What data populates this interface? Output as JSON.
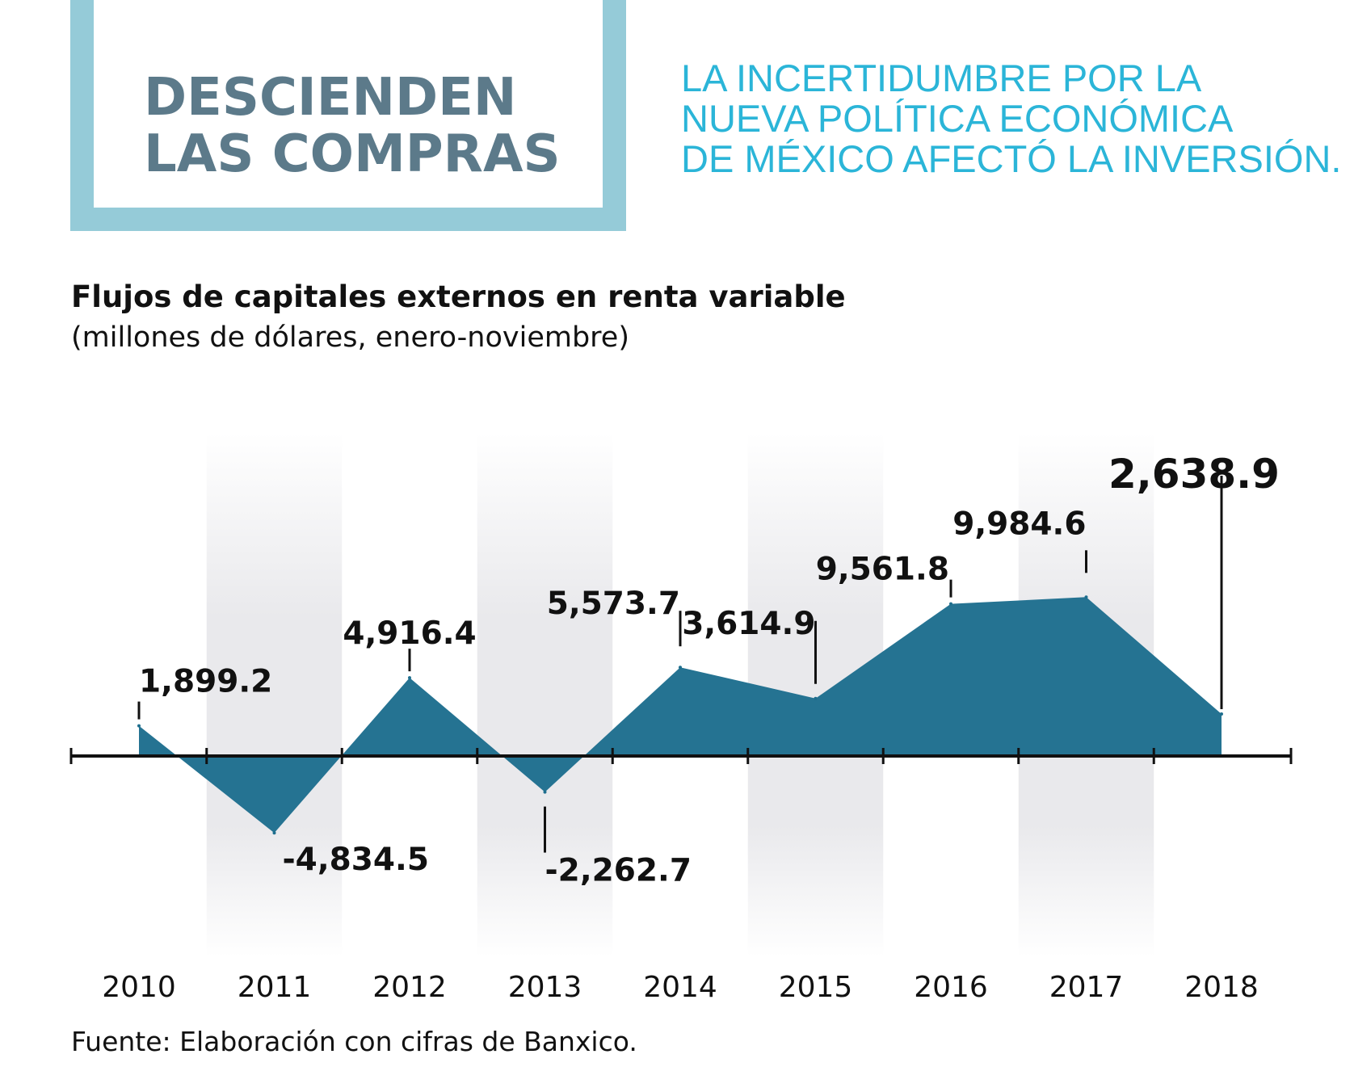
{
  "header": {
    "title_lines": [
      "DESCIENDEN",
      "LAS COMPRAS"
    ],
    "subtitle_lines": [
      "LA INCERTIDUMBRE POR LA",
      "NUEVA POLÍTICA ECONÓMICA",
      "DE MÉXICO AFECTÓ LA INVERSIÓN."
    ]
  },
  "colors": {
    "frame": "#95cbd8",
    "title": "#5c7a8a",
    "subtitle": "#2bb5d8",
    "area": "#1e6e8e",
    "band": "#e9e9ec"
  },
  "chart_data": {
    "type": "area",
    "title": "Flujos de capitales externos en renta variable",
    "subtitle": "(millones de dólares, enero-noviembre)",
    "categories": [
      "2010",
      "2011",
      "2012",
      "2013",
      "2014",
      "2015",
      "2016",
      "2017",
      "2018"
    ],
    "series": [
      {
        "values": [
          1899.2,
          -4834.5,
          4916.4,
          -2262.7,
          5573.7,
          3614.9,
          9561.8,
          9984.6,
          2638.9
        ],
        "labels": [
          "1,899.2",
          "-4,834.5",
          "4,916.4",
          "-2,262.7",
          "5,573.7",
          "3,614.9",
          "9,561.8",
          "9,984.6",
          "2,638.9"
        ]
      }
    ],
    "highlight_index": 8,
    "grid": false,
    "alternating_bands": true
  },
  "footer": {
    "source": "Fuente: Elaboración con cifras de Banxico."
  }
}
